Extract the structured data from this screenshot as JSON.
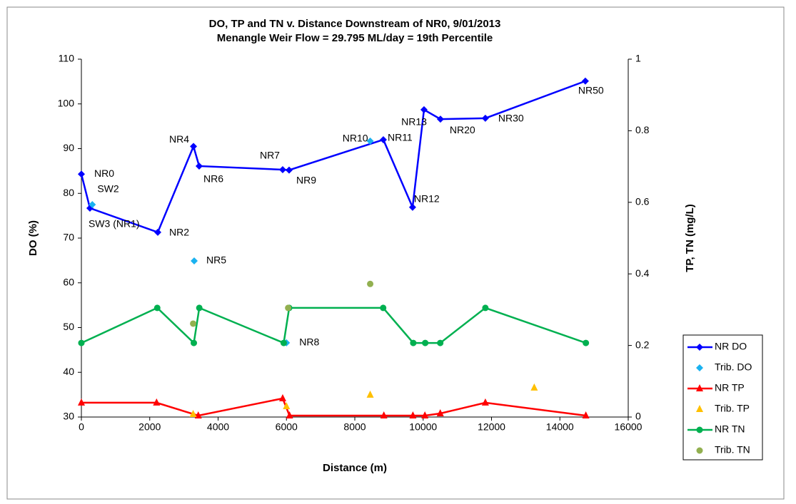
{
  "chart_data": {
    "type": "line",
    "title": "DO, TP and TN v. Distance Downstream of NR0, 9/01/2013",
    "subtitle": "Menangle Weir Flow = 29.795 ML/day = 19th Percentile",
    "x_label": "Distance (m)",
    "y_label": "DO (%)",
    "y2_label": "TP, TN (mg/L)",
    "xlim": [
      0,
      16000
    ],
    "xticks": [
      0,
      2000,
      4000,
      6000,
      8000,
      10000,
      12000,
      14000,
      16000
    ],
    "ylim": [
      30,
      110
    ],
    "yticks": [
      30,
      40,
      50,
      60,
      70,
      80,
      90,
      100,
      110
    ],
    "y2lim": [
      0,
      1
    ],
    "y2ticks": [
      0,
      0.2,
      0.4,
      0.6,
      0.8,
      1
    ],
    "grid": false,
    "legend": "right",
    "series": [
      {
        "name": "NR DO",
        "color": "#0000ff",
        "marker": "diamond",
        "line": true,
        "x": [
          0,
          250,
          2235,
          3280,
          3446,
          5890,
          6078,
          8835,
          9690,
          10025,
          10505,
          11820,
          14745
        ],
        "values": [
          84.3,
          76.7,
          71.3,
          90.5,
          86.1,
          85.3,
          85.2,
          92.0,
          76.9,
          98.7,
          96.6,
          96.8,
          105.1
        ],
        "point_labels": [
          "NR0",
          "SW3 (NR1)",
          "NR2",
          "NR4",
          "NR6",
          "NR7",
          "NR9",
          "NR11",
          "NR12",
          "NR13",
          "NR20",
          "NR30",
          "NR50"
        ]
      },
      {
        "name": "Trib. DO",
        "color": "#1ab2f0",
        "marker": "diamond",
        "line": false,
        "x": [
          320,
          3300,
          6000,
          8450
        ],
        "values": [
          77.5,
          64.9,
          46.6,
          91.7
        ],
        "point_labels": [
          "SW2",
          "NR5",
          "NR8",
          "NR10"
        ]
      },
      {
        "name": "NR TP",
        "color": "#ff0000",
        "marker": "triangle",
        "line": true,
        "axis": "y2",
        "x": [
          0,
          2200,
          3420,
          5890,
          6090,
          8850,
          9700,
          10050,
          10500,
          11820,
          14760
        ],
        "values": [
          0.04,
          0.04,
          0.004,
          0.052,
          0.004,
          0.004,
          0.004,
          0.004,
          0.01,
          0.04,
          0.004
        ]
      },
      {
        "name": "Trib. TP",
        "color": "#ffc000",
        "marker": "triangle",
        "line": false,
        "axis": "y2",
        "x": [
          3270,
          6000,
          8450,
          13250
        ],
        "values": [
          0.008,
          0.03,
          0.062,
          0.082
        ]
      },
      {
        "name": "NR TN",
        "color": "#00b050",
        "marker": "circle",
        "line": true,
        "axis": "y2",
        "x": [
          0,
          2220,
          3290,
          3450,
          5920,
          6080,
          8830,
          9710,
          10060,
          10500,
          11820,
          14760
        ],
        "values": [
          0.207,
          0.305,
          0.207,
          0.305,
          0.207,
          0.305,
          0.305,
          0.207,
          0.207,
          0.207,
          0.305,
          0.207
        ]
      },
      {
        "name": "Trib. TN",
        "color": "#92b050",
        "marker": "circle",
        "line": false,
        "axis": "y2",
        "x": [
          3270,
          6050,
          8450
        ],
        "values": [
          0.261,
          0.305,
          0.372
        ]
      }
    ]
  }
}
